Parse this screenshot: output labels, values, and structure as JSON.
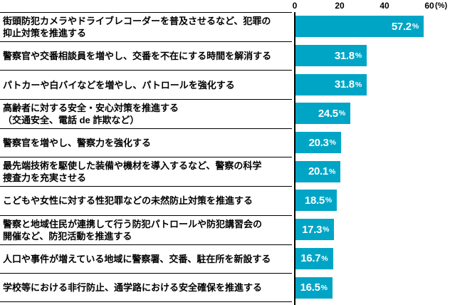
{
  "colors": {
    "bar": "#00a5c6",
    "text": "#000000",
    "value_text": "#ffffff"
  },
  "percent_sign": "%",
  "axis_header": {
    "ticks": [
      "0",
      "20",
      "40",
      "60"
    ],
    "unit_label": "(%)"
  },
  "rows": [
    {
      "label": "街頭防犯カメラやドライブレコーダーを普及させるなど、犯罪の\n抑止対策を推進する",
      "value": "57.2"
    },
    {
      "label": "警察官や交番相談員を増やし、交番を不在にする時間を解消する",
      "value": "31.8"
    },
    {
      "label": "パトカーや白バイなどを増やし、パトロールを強化する",
      "value": "31.8"
    },
    {
      "label": "高齢者に対する安全・安心対策を推進する\n（交通安全、電話 de 詐欺など）",
      "value": "24.5"
    },
    {
      "label": "警察官を増やし、警察力を強化する",
      "value": "20.3"
    },
    {
      "label": "最先端技術を駆使した装備や機材を導入するなど、警察の科学\n捜査力を充実させる",
      "value": "20.1"
    },
    {
      "label": "こどもや女性に対する性犯罪などの未然防止対策を推進する",
      "value": "18.5"
    },
    {
      "label": "警察と地域住民が連携して行う防犯パトロールや防犯講習会の\n開催など、防犯活動を推進する",
      "value": "17.3"
    },
    {
      "label": "人口や事件が増えている地域に警察署、交番、駐在所を新設する",
      "value": "16.7"
    },
    {
      "label": "学校等における非行防止、通学路における安全確保を推進する",
      "value": "16.5"
    }
  ],
  "chart_data": {
    "type": "bar",
    "orientation": "horizontal",
    "title": "",
    "categories": [
      "街頭防犯カメラやドライブレコーダーを普及させるなど、犯罪の抑止対策を推進する",
      "警察官や交番相談員を増やし、交番を不在にする時間を解消する",
      "パトカーや白バイなどを増やし、パトロールを強化する",
      "高齢者に対する安全・安心対策を推進する（交通安全、電話 de 詐欺など）",
      "警察官を増やし、警察力を強化する",
      "最先端技術を駆使した装備や機材を導入するなど、警察の科学捜査力を充実させる",
      "こどもや女性に対する性犯罪などの未然防止対策を推進する",
      "警察と地域住民が連携して行う防犯パトロールや防犯講習会の開催など、防犯活動を推進する",
      "人口や事件が増えている地域に警察署、交番、駐在所を新設する",
      "学校等における非行防止、通学路における安全確保を推進する"
    ],
    "values": [
      57.2,
      31.8,
      31.8,
      24.5,
      20.3,
      20.1,
      18.5,
      17.3,
      16.7,
      16.5
    ],
    "value_suffix": "%",
    "xlabel": "(%)",
    "ylabel": "",
    "xlim": [
      0,
      69
    ],
    "axis_ticks": [
      0,
      20,
      40,
      60
    ],
    "axis_position": "top",
    "grid": false,
    "legend": false,
    "bar_color": "#00a5c6"
  }
}
